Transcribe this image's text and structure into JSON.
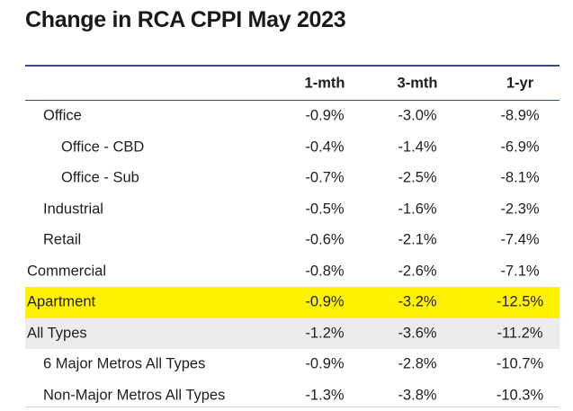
{
  "title": "Change in RCA CPPI May 2023",
  "columns": [
    "1-mth",
    "3-mth",
    "1-yr"
  ],
  "rows": [
    {
      "label": "Office",
      "level": 1,
      "values": [
        "-0.9%",
        "-3.0%",
        "-8.9%"
      ],
      "style": ""
    },
    {
      "label": "Office - CBD",
      "level": 2,
      "values": [
        "-0.4%",
        "-1.4%",
        "-6.9%"
      ],
      "style": ""
    },
    {
      "label": "Office - Sub",
      "level": 2,
      "values": [
        "-0.7%",
        "-2.5%",
        "-8.1%"
      ],
      "style": ""
    },
    {
      "label": "Industrial",
      "level": 1,
      "values": [
        "-0.5%",
        "-1.6%",
        "-2.3%"
      ],
      "style": ""
    },
    {
      "label": "Retail",
      "level": 1,
      "values": [
        "-0.6%",
        "-2.1%",
        "-7.4%"
      ],
      "style": ""
    },
    {
      "label": "Commercial",
      "level": 0,
      "values": [
        "-0.8%",
        "-2.6%",
        "-7.1%"
      ],
      "style": ""
    },
    {
      "label": "Apartment",
      "level": 0,
      "values": [
        "-0.9%",
        "-3.2%",
        "-12.5%"
      ],
      "style": "highlight"
    },
    {
      "label": "All Types",
      "level": 0,
      "values": [
        "-1.2%",
        "-3.6%",
        "-11.2%"
      ],
      "style": "grey"
    },
    {
      "label": "6 Major Metros All Types",
      "level": 1,
      "values": [
        "-0.9%",
        "-2.8%",
        "-10.7%"
      ],
      "style": ""
    },
    {
      "label": "Non-Major Metros All Types",
      "level": 1,
      "values": [
        "-1.3%",
        "-3.8%",
        "-10.3%"
      ],
      "style": ""
    }
  ],
  "colors": {
    "highlight": "#fff200",
    "grey_row": "#ececec",
    "rule": "#3d4a7a"
  }
}
